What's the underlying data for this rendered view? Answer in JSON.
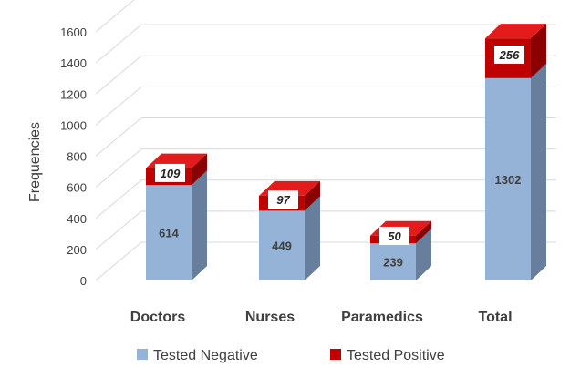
{
  "chart_data": {
    "type": "bar",
    "stacked": true,
    "three_d": true,
    "categories": [
      "Doctors",
      "Nurses",
      "Paramedics",
      "Total"
    ],
    "series": [
      {
        "name": "Tested Negative",
        "values": [
          614,
          449,
          239,
          1302
        ],
        "color": "#95b3d7"
      },
      {
        "name": "Tested Positive",
        "values": [
          109,
          97,
          50,
          256
        ],
        "color": "#c00000"
      }
    ],
    "xlabel": "",
    "ylabel": "Frequencies",
    "ylim": [
      0,
      1600
    ],
    "yticks": [
      0,
      200,
      400,
      600,
      800,
      1000,
      1200,
      1400,
      1600
    ],
    "grid": true,
    "legend_position": "bottom"
  }
}
